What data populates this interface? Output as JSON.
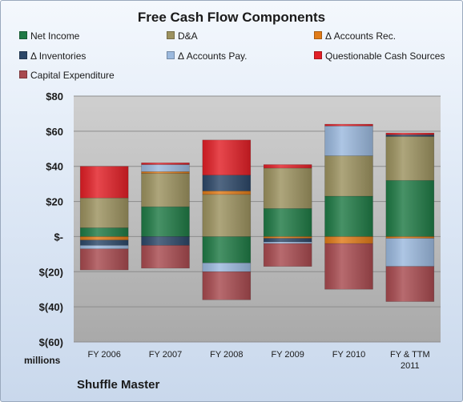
{
  "chart_data": {
    "type": "bar",
    "stacked": true,
    "title": "Free Cash Flow Components",
    "categories": [
      "FY 2006",
      "FY 2007",
      "FY 2008",
      "FY 2009",
      "FY 2010",
      "FY & TTM 2011"
    ],
    "ylim": [
      -60,
      80
    ],
    "yticks": [
      80,
      60,
      40,
      20,
      0,
      -20,
      -40,
      -60
    ],
    "ytick_labels": [
      "$80",
      "$60",
      "$40",
      "$20",
      "$-",
      "$(20)",
      "$(40)",
      "$(60)"
    ],
    "units_label": "millions",
    "source_label": "Shuffle Master",
    "grid": true,
    "legend_position": "top",
    "series": [
      {
        "name": "Net Income",
        "color": "#1f7a45",
        "values": [
          5,
          17,
          -15,
          16,
          23,
          32
        ]
      },
      {
        "name": "D&A",
        "color": "#9c925f",
        "values": [
          17,
          19,
          24,
          23,
          23,
          25
        ]
      },
      {
        "name": "Δ Accounts Rec.",
        "color": "#e07b18",
        "values": [
          -2,
          1,
          2,
          -1,
          -4,
          -1
        ]
      },
      {
        "name": "Δ Inventories",
        "color": "#2c4768",
        "values": [
          -3,
          -5,
          9,
          -2,
          0,
          1
        ]
      },
      {
        "name": "Δ Accounts Pay.",
        "color": "#9bb9de",
        "values": [
          -2,
          4,
          -5,
          -1,
          17,
          -16
        ]
      },
      {
        "name": "Questionable Cash Sources",
        "color": "#e21f26",
        "values": [
          18,
          1,
          20,
          2,
          1,
          1
        ]
      },
      {
        "name": "Capital Expenditure",
        "color": "#a84a4f",
        "values": [
          -12,
          -13,
          -16,
          -13,
          -26,
          -20
        ]
      }
    ]
  }
}
